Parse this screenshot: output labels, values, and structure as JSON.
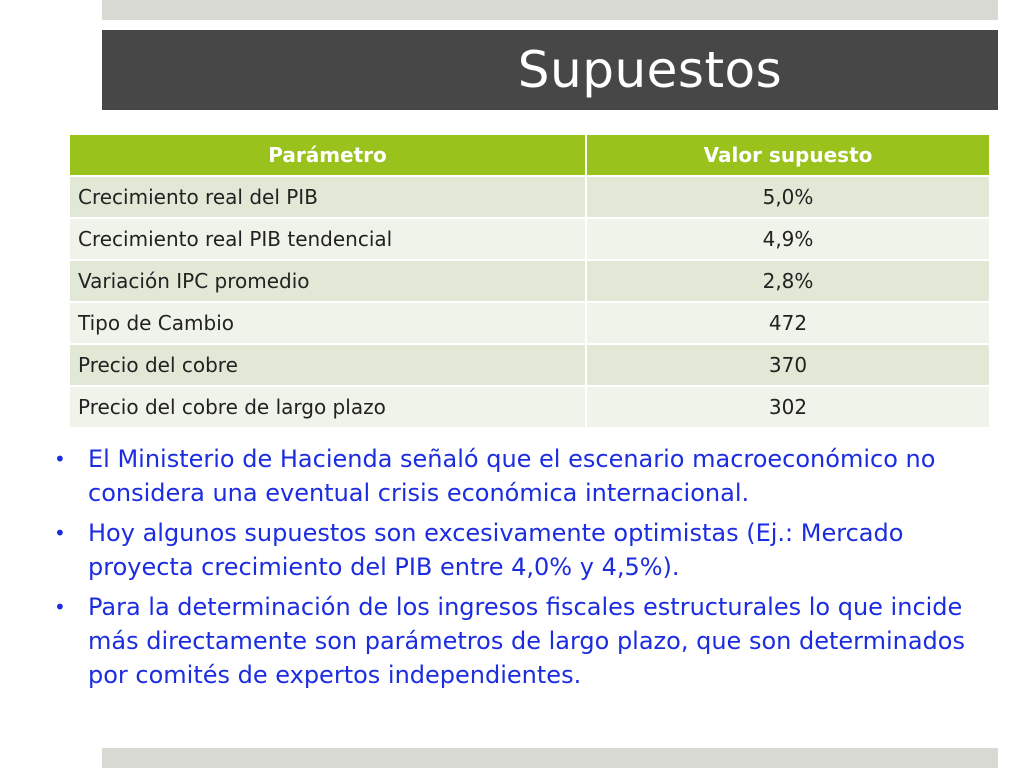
{
  "slide": {
    "title": "Supuestos"
  },
  "table": {
    "headers": [
      "Parámetro",
      "Valor supuesto"
    ],
    "rows": [
      {
        "param": "Crecimiento real del PIB",
        "value": "5,0%"
      },
      {
        "param": "Crecimiento real PIB tendencial",
        "value": "4,9%"
      },
      {
        "param": "Variación IPC promedio",
        "value": "2,8%"
      },
      {
        "param": "Tipo de Cambio",
        "value": "472"
      },
      {
        "param": "Precio del cobre",
        "value": "370"
      },
      {
        "param": "Precio del cobre de largo plazo",
        "value": "302"
      }
    ]
  },
  "bullets": [
    "El Ministerio de Hacienda señaló que el escenario macroeconómico no considera una eventual crisis económica internacional.",
    "Hoy algunos supuestos son excesivamente optimistas (Ej.: Mercado proyecta crecimiento del PIB entre 4,0% y 4,5%).",
    "Para la determinación de los ingresos fiscales estructurales lo que incide más directamente son parámetros de largo plazo, que son determinados por comités de expertos independientes."
  ],
  "colors": {
    "title_bar": "#474747",
    "table_header": "#99c31c",
    "row_odd": "#e1e8d6",
    "row_even": "#eff3ea",
    "bullet_text": "#1c2de0"
  }
}
